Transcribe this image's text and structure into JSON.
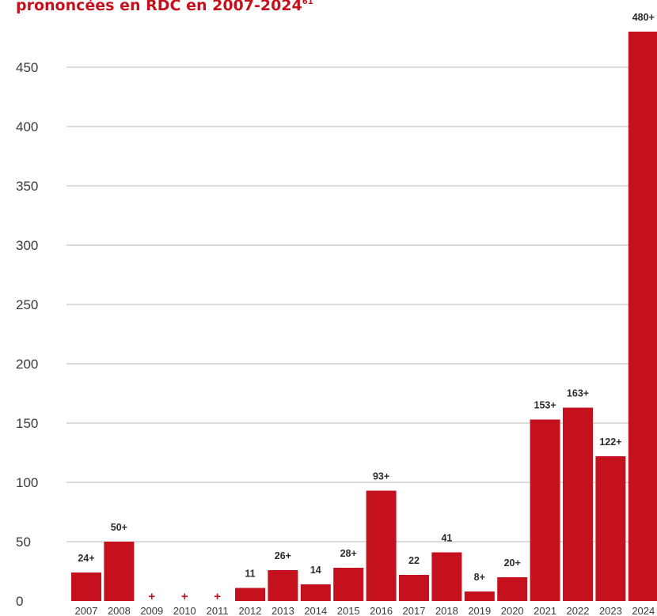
{
  "title": {
    "text": "prononcées en RDC en 2007-2024",
    "footnote": "61"
  },
  "colors": {
    "bar": "#c5111d",
    "title": "#c5111d",
    "grid": "#b8b8b8",
    "text": "#2b2b2b"
  },
  "chart_data": {
    "type": "bar",
    "title": "prononcées en RDC en 2007-2024",
    "categories": [
      "2007",
      "2008",
      "2009",
      "2010",
      "2011",
      "2012",
      "2013",
      "2014",
      "2015",
      "2016",
      "2017",
      "2018",
      "2019",
      "2020",
      "2021",
      "2022",
      "2023",
      "2024"
    ],
    "values": [
      24,
      50,
      0,
      0,
      0,
      11,
      26,
      14,
      28,
      93,
      22,
      41,
      8,
      20,
      153,
      163,
      122,
      480
    ],
    "labels": [
      "24+",
      "50+",
      "+",
      "+",
      "+",
      "11",
      "26+",
      "14",
      "28+",
      "93+",
      "22",
      "41",
      "8+",
      "20+",
      "153+",
      "163+",
      "122+",
      "480+"
    ],
    "yticks": [
      "0",
      "50",
      "100",
      "150",
      "200",
      "250",
      "300",
      "350",
      "400",
      "450"
    ],
    "ylim": [
      0,
      480
    ],
    "grid": true,
    "legend": false
  }
}
